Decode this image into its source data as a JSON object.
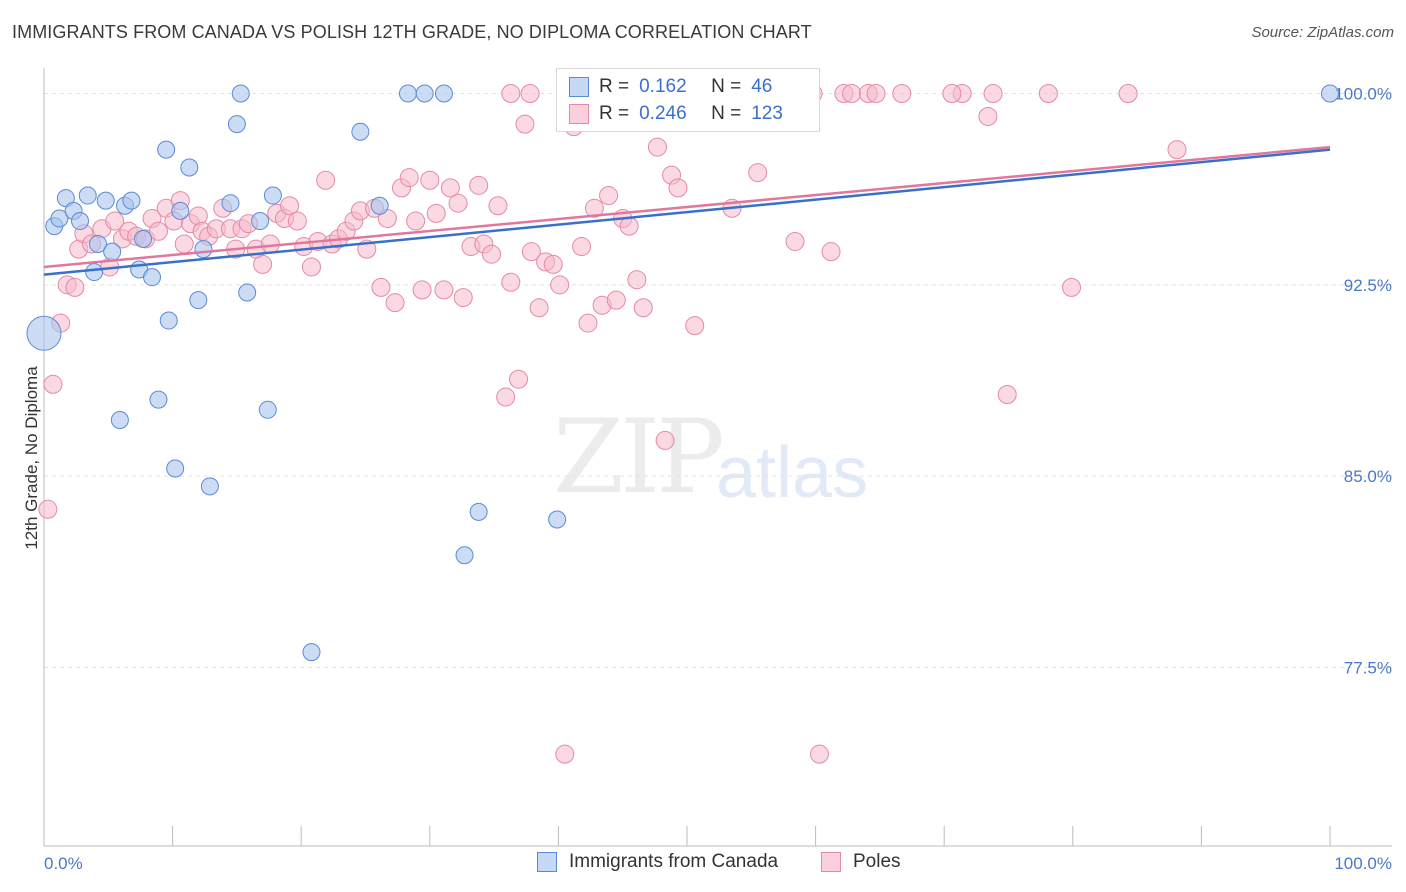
{
  "header": {
    "title": "IMMIGRANTS FROM CANADA VS POLISH 12TH GRADE, NO DIPLOMA CORRELATION CHART",
    "source": "Source: ZipAtlas.com"
  },
  "watermark": {
    "zip": "ZIP",
    "atlas": "atlas"
  },
  "legend": {
    "rows": [
      {
        "r_label": "R =",
        "r_value": "0.162",
        "n_label": "N =",
        "n_value": "46"
      },
      {
        "r_label": "R =",
        "r_value": "0.246",
        "n_label": "N =",
        "n_value": "123"
      }
    ]
  },
  "bottom_legend": {
    "items": [
      {
        "label": "Immigrants from Canada"
      },
      {
        "label": "Poles"
      }
    ]
  },
  "chart_data": {
    "type": "scatter",
    "title": "IMMIGRANTS FROM CANADA VS POLISH 12TH GRADE, NO DIPLOMA CORRELATION CHART",
    "xlabel": "",
    "ylabel": "12th Grade, No Diploma",
    "xlim": [
      0,
      100
    ],
    "ylim": [
      70.5,
      101
    ],
    "x_tick_labels": [
      "0.0%",
      "100.0%"
    ],
    "y_ticks": [
      77.5,
      85.0,
      92.5,
      100.0
    ],
    "y_tick_labels": [
      "77.5%",
      "85.0%",
      "92.5%",
      "100.0%"
    ],
    "grid": true,
    "legend_position": "top-center",
    "colors": {
      "canada_fill": "#a9c4ec",
      "canada_stroke": "#5b8bd6",
      "canada_line": "#3a70c8",
      "poles_fill": "#f6b9cc",
      "poles_stroke": "#e58aa6",
      "poles_line": "#e0779c",
      "tick_text": "#4a78c8"
    },
    "series": [
      {
        "name": "Immigrants from Canada",
        "trend": {
          "x": [
            0,
            100
          ],
          "y": [
            92.9,
            97.8
          ]
        },
        "points": [
          [
            0.0,
            90.6
          ],
          [
            0.8,
            94.8
          ],
          [
            1.2,
            95.1
          ],
          [
            1.7,
            95.9
          ],
          [
            2.3,
            95.4
          ],
          [
            2.8,
            95.0
          ],
          [
            3.4,
            96.0
          ],
          [
            3.9,
            93.0
          ],
          [
            4.2,
            94.1
          ],
          [
            4.8,
            95.8
          ],
          [
            5.3,
            93.8
          ],
          [
            5.9,
            87.2
          ],
          [
            6.3,
            95.6
          ],
          [
            6.8,
            95.8
          ],
          [
            7.4,
            93.1
          ],
          [
            7.7,
            94.3
          ],
          [
            8.4,
            92.8
          ],
          [
            8.9,
            88.0
          ],
          [
            9.5,
            97.8
          ],
          [
            9.7,
            91.1
          ],
          [
            10.2,
            85.3
          ],
          [
            10.6,
            95.4
          ],
          [
            11.3,
            97.1
          ],
          [
            12.0,
            91.9
          ],
          [
            12.4,
            93.9
          ],
          [
            12.9,
            84.6
          ],
          [
            14.5,
            95.7
          ],
          [
            15.0,
            98.8
          ],
          [
            15.3,
            100.0
          ],
          [
            15.8,
            92.2
          ],
          [
            16.8,
            95.0
          ],
          [
            17.4,
            87.6
          ],
          [
            17.8,
            96.0
          ],
          [
            20.8,
            78.1
          ],
          [
            24.6,
            98.5
          ],
          [
            26.1,
            95.6
          ],
          [
            28.3,
            100.0
          ],
          [
            29.6,
            100.0
          ],
          [
            31.1,
            100.0
          ],
          [
            32.7,
            81.9
          ],
          [
            33.8,
            83.6
          ],
          [
            39.9,
            83.3
          ],
          [
            41.6,
            100.0
          ],
          [
            45.1,
            100.0
          ],
          [
            48.6,
            100.0
          ],
          [
            100.0,
            100.0
          ]
        ],
        "sizes": "the point at x=0, y=90.6 is drawn larger than the others"
      },
      {
        "name": "Poles",
        "trend": {
          "x": [
            0,
            100
          ],
          "y": [
            93.2,
            97.9
          ]
        },
        "points": [
          [
            0.3,
            83.7
          ],
          [
            0.7,
            88.6
          ],
          [
            1.3,
            91.0
          ],
          [
            1.8,
            92.5
          ],
          [
            2.4,
            92.4
          ],
          [
            2.7,
            93.9
          ],
          [
            3.1,
            94.5
          ],
          [
            3.7,
            94.1
          ],
          [
            4.5,
            94.7
          ],
          [
            5.1,
            93.2
          ],
          [
            5.5,
            95.0
          ],
          [
            6.1,
            94.3
          ],
          [
            6.6,
            94.6
          ],
          [
            7.2,
            94.4
          ],
          [
            7.9,
            94.3
          ],
          [
            8.4,
            95.1
          ],
          [
            8.9,
            94.6
          ],
          [
            9.5,
            95.5
          ],
          [
            10.1,
            95.0
          ],
          [
            10.6,
            95.8
          ],
          [
            10.9,
            94.1
          ],
          [
            11.4,
            94.9
          ],
          [
            12.0,
            95.2
          ],
          [
            12.3,
            94.6
          ],
          [
            12.8,
            94.4
          ],
          [
            13.4,
            94.7
          ],
          [
            13.9,
            95.5
          ],
          [
            14.5,
            94.7
          ],
          [
            14.9,
            93.9
          ],
          [
            15.4,
            94.7
          ],
          [
            15.9,
            94.9
          ],
          [
            16.5,
            93.9
          ],
          [
            17.0,
            93.3
          ],
          [
            17.6,
            94.1
          ],
          [
            18.1,
            95.3
          ],
          [
            18.7,
            95.1
          ],
          [
            19.1,
            95.6
          ],
          [
            19.7,
            95.0
          ],
          [
            20.2,
            94.0
          ],
          [
            20.8,
            93.2
          ],
          [
            21.3,
            94.2
          ],
          [
            21.9,
            96.6
          ],
          [
            22.4,
            94.1
          ],
          [
            22.9,
            94.3
          ],
          [
            23.5,
            94.6
          ],
          [
            24.1,
            95.0
          ],
          [
            24.6,
            95.4
          ],
          [
            25.1,
            93.9
          ],
          [
            25.7,
            95.5
          ],
          [
            26.2,
            92.4
          ],
          [
            26.7,
            95.1
          ],
          [
            27.3,
            91.8
          ],
          [
            27.8,
            96.3
          ],
          [
            28.4,
            96.7
          ],
          [
            28.9,
            95.0
          ],
          [
            29.4,
            92.3
          ],
          [
            30.0,
            96.6
          ],
          [
            30.5,
            95.3
          ],
          [
            31.1,
            92.3
          ],
          [
            31.6,
            96.3
          ],
          [
            32.2,
            95.7
          ],
          [
            32.6,
            92.0
          ],
          [
            33.2,
            94.0
          ],
          [
            33.8,
            96.4
          ],
          [
            34.2,
            94.1
          ],
          [
            34.8,
            93.7
          ],
          [
            35.3,
            95.6
          ],
          [
            35.9,
            88.1
          ],
          [
            36.3,
            92.6
          ],
          [
            36.9,
            88.8
          ],
          [
            37.4,
            98.8
          ],
          [
            37.9,
            93.8
          ],
          [
            38.5,
            91.6
          ],
          [
            39.0,
            93.4
          ],
          [
            39.6,
            93.3
          ],
          [
            40.1,
            92.5
          ],
          [
            40.7,
            100.0
          ],
          [
            41.2,
            98.7
          ],
          [
            41.8,
            94.0
          ],
          [
            42.3,
            91.0
          ],
          [
            42.8,
            95.5
          ],
          [
            43.4,
            91.7
          ],
          [
            43.9,
            96.0
          ],
          [
            44.5,
            91.9
          ],
          [
            45.0,
            95.1
          ],
          [
            45.5,
            94.8
          ],
          [
            46.1,
            92.7
          ],
          [
            46.6,
            91.6
          ],
          [
            47.2,
            100.0
          ],
          [
            47.7,
            97.9
          ],
          [
            48.3,
            86.4
          ],
          [
            48.8,
            96.8
          ],
          [
            49.3,
            96.3
          ],
          [
            50.6,
            90.9
          ],
          [
            51.7,
            100.0
          ],
          [
            53.5,
            95.5
          ],
          [
            54.5,
            100.0
          ],
          [
            55.5,
            96.9
          ],
          [
            57.1,
            100.0
          ],
          [
            58.4,
            94.2
          ],
          [
            60.3,
            74.1
          ],
          [
            61.2,
            93.8
          ],
          [
            62.2,
            100.0
          ],
          [
            62.8,
            100.0
          ],
          [
            64.1,
            100.0
          ],
          [
            66.7,
            100.0
          ],
          [
            71.4,
            100.0
          ],
          [
            73.4,
            99.1
          ],
          [
            73.8,
            100.0
          ],
          [
            74.9,
            88.2
          ],
          [
            78.1,
            100.0
          ],
          [
            79.9,
            92.4
          ],
          [
            84.3,
            100.0
          ],
          [
            88.1,
            97.8
          ],
          [
            40.5,
            74.1
          ],
          [
            42.6,
            100.0
          ],
          [
            56.2,
            100.0
          ],
          [
            59.8,
            100.0
          ],
          [
            70.6,
            100.0
          ],
          [
            36.3,
            100.0
          ],
          [
            50.2,
            99.5
          ],
          [
            64.7,
            100.0
          ],
          [
            37.8,
            100.0
          ]
        ]
      }
    ]
  }
}
